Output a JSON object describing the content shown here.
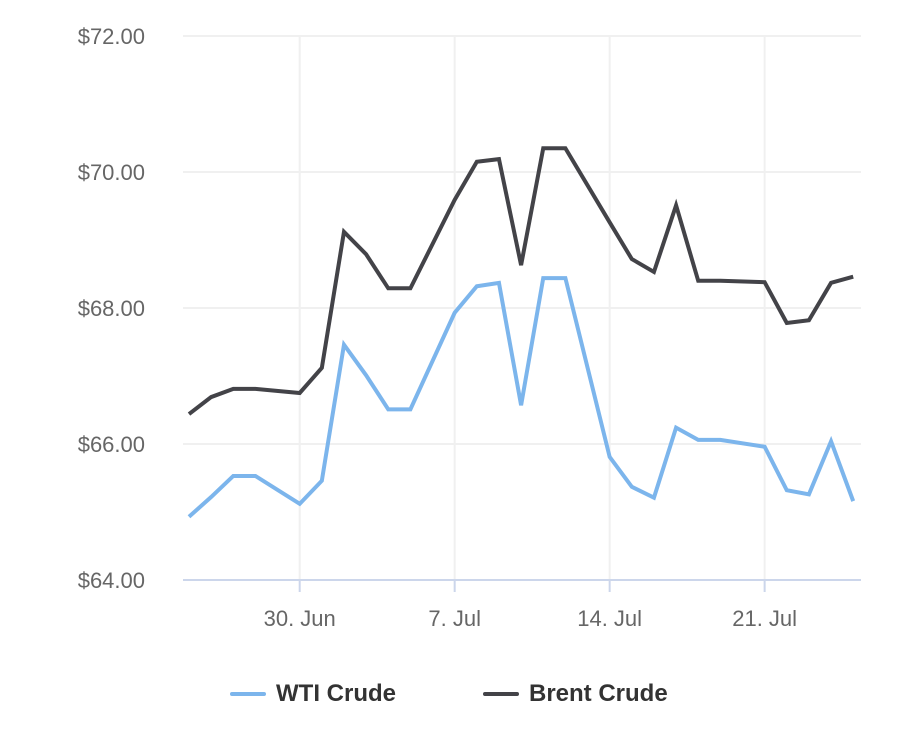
{
  "chart_data": {
    "type": "line",
    "title": "",
    "xlabel": "",
    "ylabel": "",
    "ylim": [
      64,
      72
    ],
    "yticks": [
      "$64.00",
      "$66.00",
      "$68.00",
      "$70.00",
      "$72.00"
    ],
    "ytick_values": [
      64,
      66,
      68,
      70,
      72
    ],
    "xticks": [
      {
        "day": 5,
        "label": "30. Jun"
      },
      {
        "day": 12,
        "label": "7. Jul"
      },
      {
        "day": 19,
        "label": "14. Jul"
      },
      {
        "day": 26,
        "label": "21. Jul"
      }
    ],
    "x_days_from_jun25": [
      0,
      1,
      2,
      3,
      5,
      6,
      7,
      8,
      9,
      10,
      12,
      13,
      14,
      15,
      16,
      17,
      19,
      20,
      21,
      22,
      23,
      24,
      26,
      27,
      28,
      29,
      30
    ],
    "x_dates": [
      "25 Jun",
      "26 Jun",
      "27 Jun",
      "28 Jun",
      "30 Jun",
      "1 Jul",
      "2 Jul",
      "3 Jul",
      "4 Jul",
      "5 Jul",
      "7 Jul",
      "8 Jul",
      "9 Jul",
      "10 Jul",
      "11 Jul",
      "12 Jul",
      "14 Jul",
      "15 Jul",
      "16 Jul",
      "17 Jul",
      "18 Jul",
      "19 Jul",
      "21 Jul",
      "22 Jul",
      "23 Jul",
      "24 Jul",
      "25 Jul"
    ],
    "xlim_days": [
      -0.3,
      30.3
    ],
    "grid": true,
    "legend_position": "bottom-center",
    "series": [
      {
        "name": "WTI Crude",
        "color": "#7cb5ec",
        "values": [
          64.93,
          65.22,
          65.53,
          65.53,
          65.12,
          65.46,
          67.46,
          67.01,
          66.51,
          66.51,
          67.93,
          68.32,
          68.37,
          66.57,
          68.44,
          68.44,
          65.81,
          65.37,
          65.21,
          66.24,
          66.06,
          66.06,
          65.96,
          65.32,
          65.26,
          66.04,
          65.16
        ]
      },
      {
        "name": "Brent Crude",
        "color": "#434348",
        "values": [
          66.44,
          66.69,
          66.81,
          66.81,
          66.75,
          67.12,
          69.12,
          68.79,
          68.29,
          68.29,
          69.59,
          70.15,
          70.19,
          68.63,
          70.35,
          70.35,
          69.26,
          68.72,
          68.53,
          69.51,
          68.4,
          68.4,
          68.38,
          67.78,
          67.82,
          68.37,
          68.46
        ]
      }
    ]
  }
}
